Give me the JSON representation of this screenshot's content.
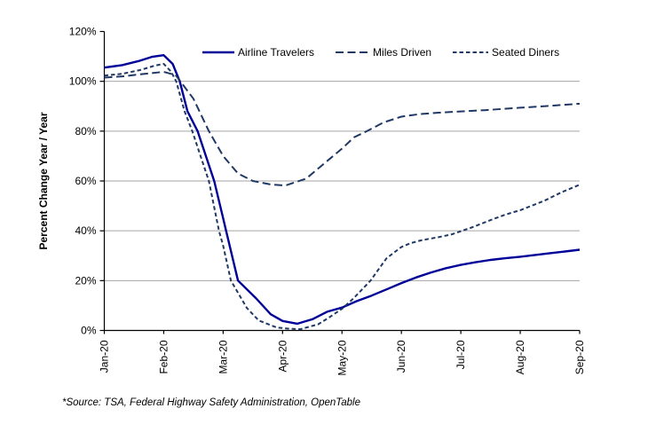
{
  "footnote": "*Source: TSA, Federal Highway Safety Administration, OpenTable",
  "colors": {
    "axis": "#000000",
    "gridline": "#A6A6A6",
    "background": "#FFFFFF",
    "airline_line": "#000099",
    "dashed_line": "#1F3864"
  },
  "chart_data": {
    "type": "line",
    "title": "",
    "xlabel": "",
    "ylabel": "Percent Change Year / Year",
    "ylim": [
      0,
      120
    ],
    "xlim_months": [
      0,
      8
    ],
    "grid": "horizontal-only",
    "gridline_values": [
      20,
      40,
      60,
      80,
      100
    ],
    "legend_position": "top-inside-horizontal",
    "y_tick_values": [
      0,
      20,
      40,
      60,
      80,
      100,
      120
    ],
    "y_tick_labels": [
      "0%",
      "20%",
      "40%",
      "60%",
      "80%",
      "100%",
      "120%"
    ],
    "categories": [
      "Jan-20",
      "Feb-20",
      "Mar-20",
      "Apr-20",
      "May-20",
      "Jun-20",
      "Jul-20",
      "Aug-20",
      "Sep-20"
    ],
    "monthly_values_pct": {
      "note": "values read at each month tick",
      "Airline Travelers": [
        105.5,
        110.5,
        45,
        3.8,
        9.2,
        19,
        26.3,
        29.6,
        32.4
      ],
      "Miles Driven": [
        101.5,
        103.8,
        70,
        58.2,
        73,
        85.8,
        87.9,
        89.4,
        91
      ],
      "Seated Diners": [
        102.3,
        107,
        34,
        0.7,
        8.7,
        33.5,
        39.8,
        48.3,
        58.5
      ]
    },
    "series": [
      {
        "name": "Airline Travelers",
        "line_style": "solid",
        "color": "#000099",
        "points": [
          [
            0,
            105.5
          ],
          [
            0.3,
            106.5
          ],
          [
            0.6,
            108.3
          ],
          [
            0.8,
            109.8
          ],
          [
            1,
            110.5
          ],
          [
            1.15,
            107
          ],
          [
            1.27,
            100
          ],
          [
            1.4,
            88
          ],
          [
            1.57,
            80
          ],
          [
            1.85,
            60
          ],
          [
            2,
            45
          ],
          [
            2.05,
            40
          ],
          [
            2.25,
            20
          ],
          [
            2.55,
            13
          ],
          [
            2.8,
            6.5
          ],
          [
            3,
            3.8
          ],
          [
            3.25,
            2.7
          ],
          [
            3.5,
            4.5
          ],
          [
            3.75,
            7.5
          ],
          [
            4,
            9.2
          ],
          [
            4.25,
            11.8
          ],
          [
            4.5,
            14
          ],
          [
            4.75,
            16.5
          ],
          [
            5,
            19
          ],
          [
            5.25,
            21.3
          ],
          [
            5.5,
            23.3
          ],
          [
            5.75,
            25
          ],
          [
            6,
            26.3
          ],
          [
            6.25,
            27.4
          ],
          [
            6.5,
            28.3
          ],
          [
            6.75,
            29
          ],
          [
            7,
            29.6
          ],
          [
            7.25,
            30.3
          ],
          [
            7.5,
            31
          ],
          [
            7.75,
            31.7
          ],
          [
            8,
            32.4
          ]
        ]
      },
      {
        "name": "Miles Driven",
        "line_style": "long-dash",
        "color": "#1F3864",
        "points": [
          [
            0,
            101.5
          ],
          [
            0.3,
            102
          ],
          [
            0.6,
            102.8
          ],
          [
            1,
            103.8
          ],
          [
            1.2,
            102.5
          ],
          [
            1.28,
            100
          ],
          [
            1.5,
            93
          ],
          [
            1.76,
            80
          ],
          [
            2,
            70
          ],
          [
            2.25,
            63
          ],
          [
            2.5,
            60
          ],
          [
            2.8,
            58.6
          ],
          [
            3.05,
            58.2
          ],
          [
            3.4,
            61
          ],
          [
            3.7,
            67
          ],
          [
            4,
            73
          ],
          [
            4.2,
            77.5
          ],
          [
            4.42,
            80
          ],
          [
            4.7,
            83.5
          ],
          [
            5,
            85.8
          ],
          [
            5.3,
            86.8
          ],
          [
            5.6,
            87.4
          ],
          [
            6,
            87.9
          ],
          [
            6.4,
            88.4
          ],
          [
            6.7,
            88.9
          ],
          [
            7,
            89.4
          ],
          [
            7.4,
            90
          ],
          [
            7.7,
            90.5
          ],
          [
            8,
            91
          ]
        ]
      },
      {
        "name": "Seated Diners",
        "line_style": "short-dash",
        "color": "#1F3864",
        "points": [
          [
            0,
            102.3
          ],
          [
            0.3,
            103
          ],
          [
            0.6,
            104.5
          ],
          [
            0.85,
            106.3
          ],
          [
            1,
            107
          ],
          [
            1.12,
            104
          ],
          [
            1.21,
            100
          ],
          [
            1.35,
            88
          ],
          [
            1.48,
            80
          ],
          [
            1.76,
            60
          ],
          [
            1.93,
            40
          ],
          [
            2,
            34
          ],
          [
            2.13,
            20
          ],
          [
            2.4,
            9
          ],
          [
            2.6,
            4
          ],
          [
            2.9,
            1.2
          ],
          [
            3.1,
            0.7
          ],
          [
            3.3,
            0.5
          ],
          [
            3.6,
            2.5
          ],
          [
            3.8,
            5.5
          ],
          [
            4,
            8.7
          ],
          [
            4.2,
            13
          ],
          [
            4.48,
            20
          ],
          [
            4.6,
            24
          ],
          [
            4.75,
            29
          ],
          [
            5,
            33.5
          ],
          [
            5.15,
            35
          ],
          [
            5.35,
            36.3
          ],
          [
            5.6,
            37.3
          ],
          [
            5.85,
            38.6
          ],
          [
            6,
            39.8
          ],
          [
            6.2,
            41.5
          ],
          [
            6.5,
            44.3
          ],
          [
            6.75,
            46.5
          ],
          [
            7,
            48.3
          ],
          [
            7.4,
            52
          ],
          [
            7.7,
            55.5
          ],
          [
            8,
            58.5
          ]
        ]
      }
    ]
  }
}
